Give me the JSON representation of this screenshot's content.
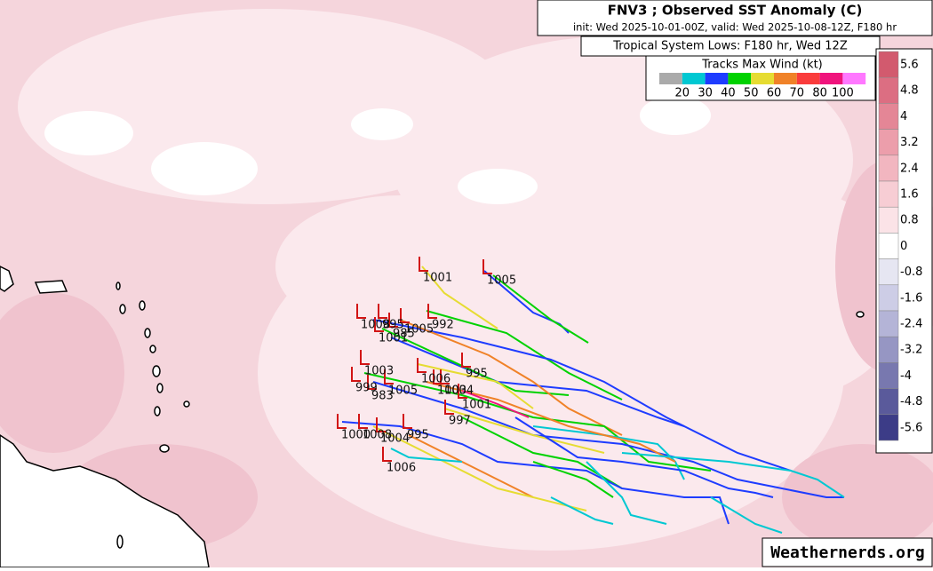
{
  "header": {
    "title": "FNV3 ; Observed SST Anomaly (C)",
    "subtitle": "init: Wed 2025-10-01-00Z, valid: Wed 2025-10-08-12Z, F180 hr"
  },
  "systems_title": "Tropical System Lows: F180 hr, Wed 12Z",
  "legend": {
    "title": "Tracks Max Wind (kt)",
    "labels": [
      "20",
      "30",
      "40",
      "50",
      "60",
      "70",
      "80",
      "100"
    ]
  },
  "colorbar": {
    "labels": [
      "5.6",
      "4.8",
      "4",
      "3.2",
      "2.4",
      "1.6",
      "0.8",
      "0",
      "-0.8",
      "-1.6",
      "-2.4",
      "-3.2",
      "-4",
      "-4.8",
      "-5.6"
    ]
  },
  "pressure_labels": [
    "1001",
    "1005",
    "992",
    "1008",
    "995",
    "1005",
    "985",
    "1001",
    "995",
    "1003",
    "1006",
    "1004",
    "1003",
    "999",
    "1005",
    "983",
    "1001",
    "997",
    "1000",
    "1008",
    "1004",
    "995",
    "1006"
  ],
  "credit": "Weathernerds.org"
}
